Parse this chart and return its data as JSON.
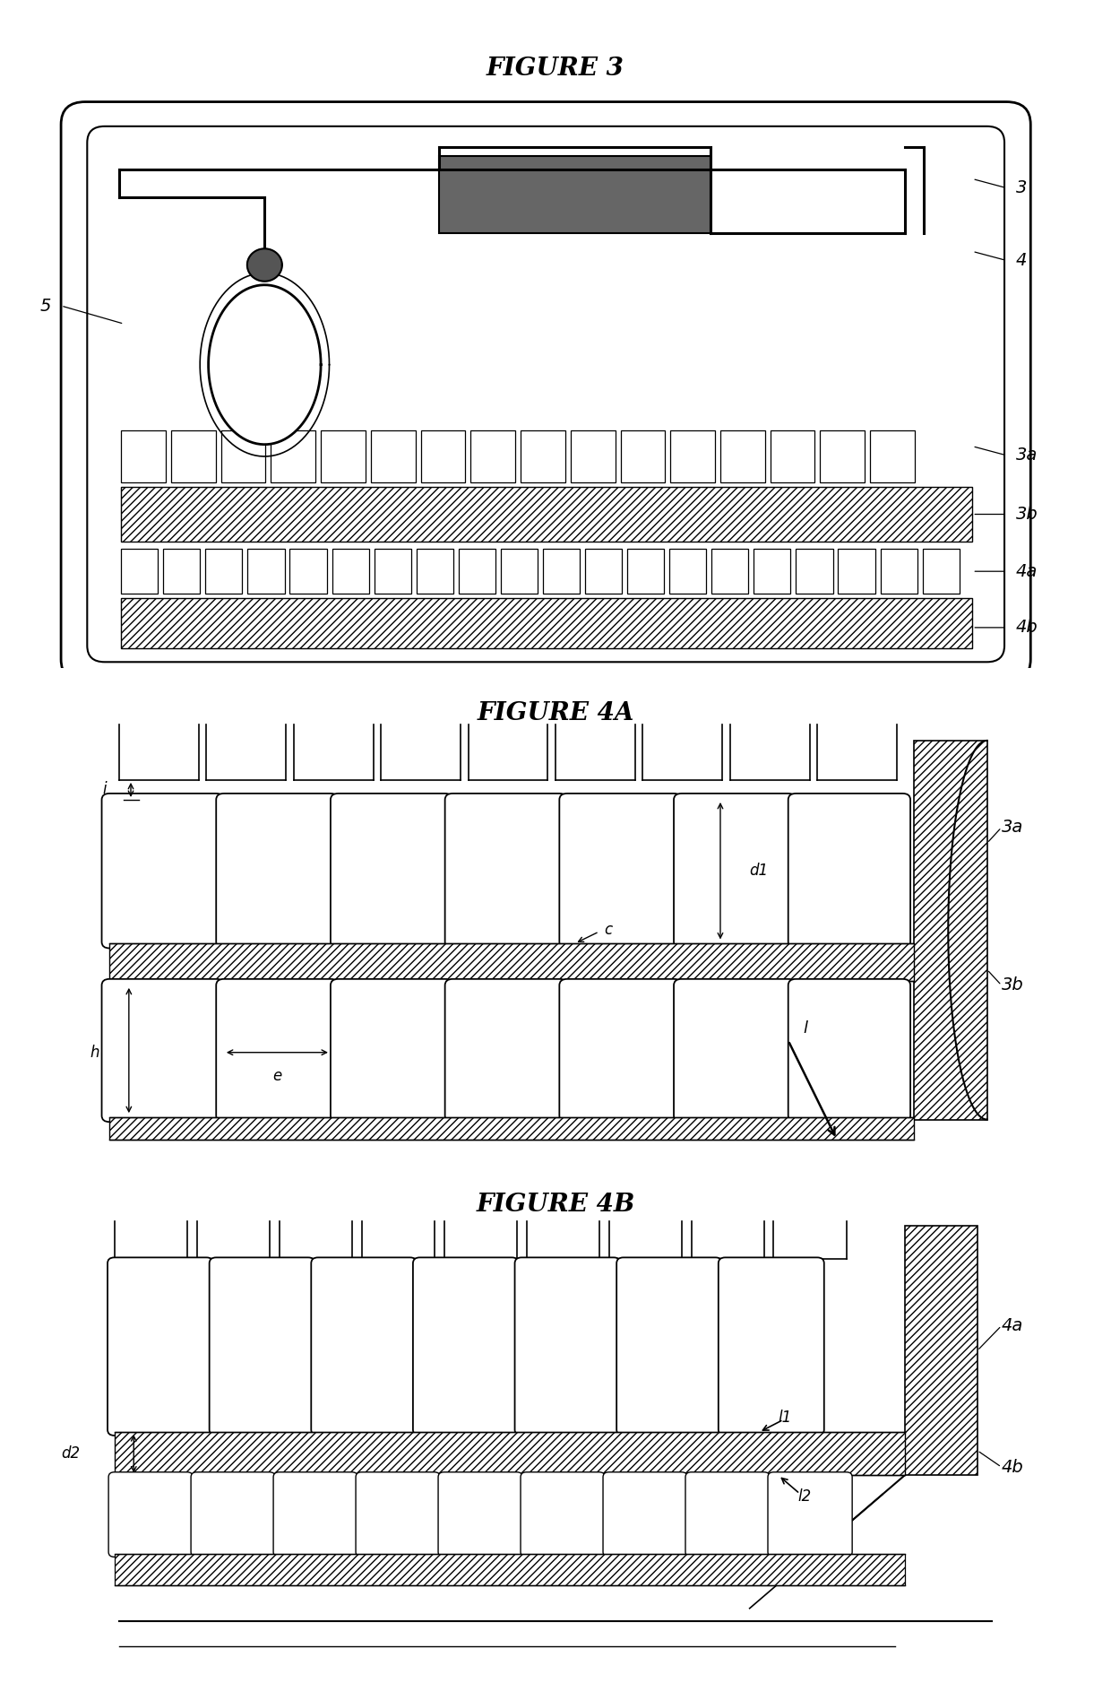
{
  "fig_title": "FIGURE 3",
  "fig4a_title": "FIGURE 4A",
  "fig4b_title": "FIGURE 4B",
  "bg_color": "#ffffff",
  "fig3_label3": "3",
  "fig3_label4": "4",
  "fig3_label5": "5",
  "fig3_label3a": "3a",
  "fig3_label3b": "3b",
  "fig3_label4a": "4a",
  "fig3_label4b": "4b",
  "fig4a_label_i": "i",
  "fig4a_label_c": "c",
  "fig4a_label_h": "h",
  "fig4a_label_e": "e",
  "fig4a_label_d1": "d1",
  "fig4a_label_l": "l",
  "fig4a_label_3a": "3a",
  "fig4a_label_3b": "3b",
  "fig4b_label_l1": "l1",
  "fig4b_label_l2": "l2",
  "fig4b_label_d2": "d2",
  "fig4b_label_4a": "4a",
  "fig4b_label_4b": "4b"
}
